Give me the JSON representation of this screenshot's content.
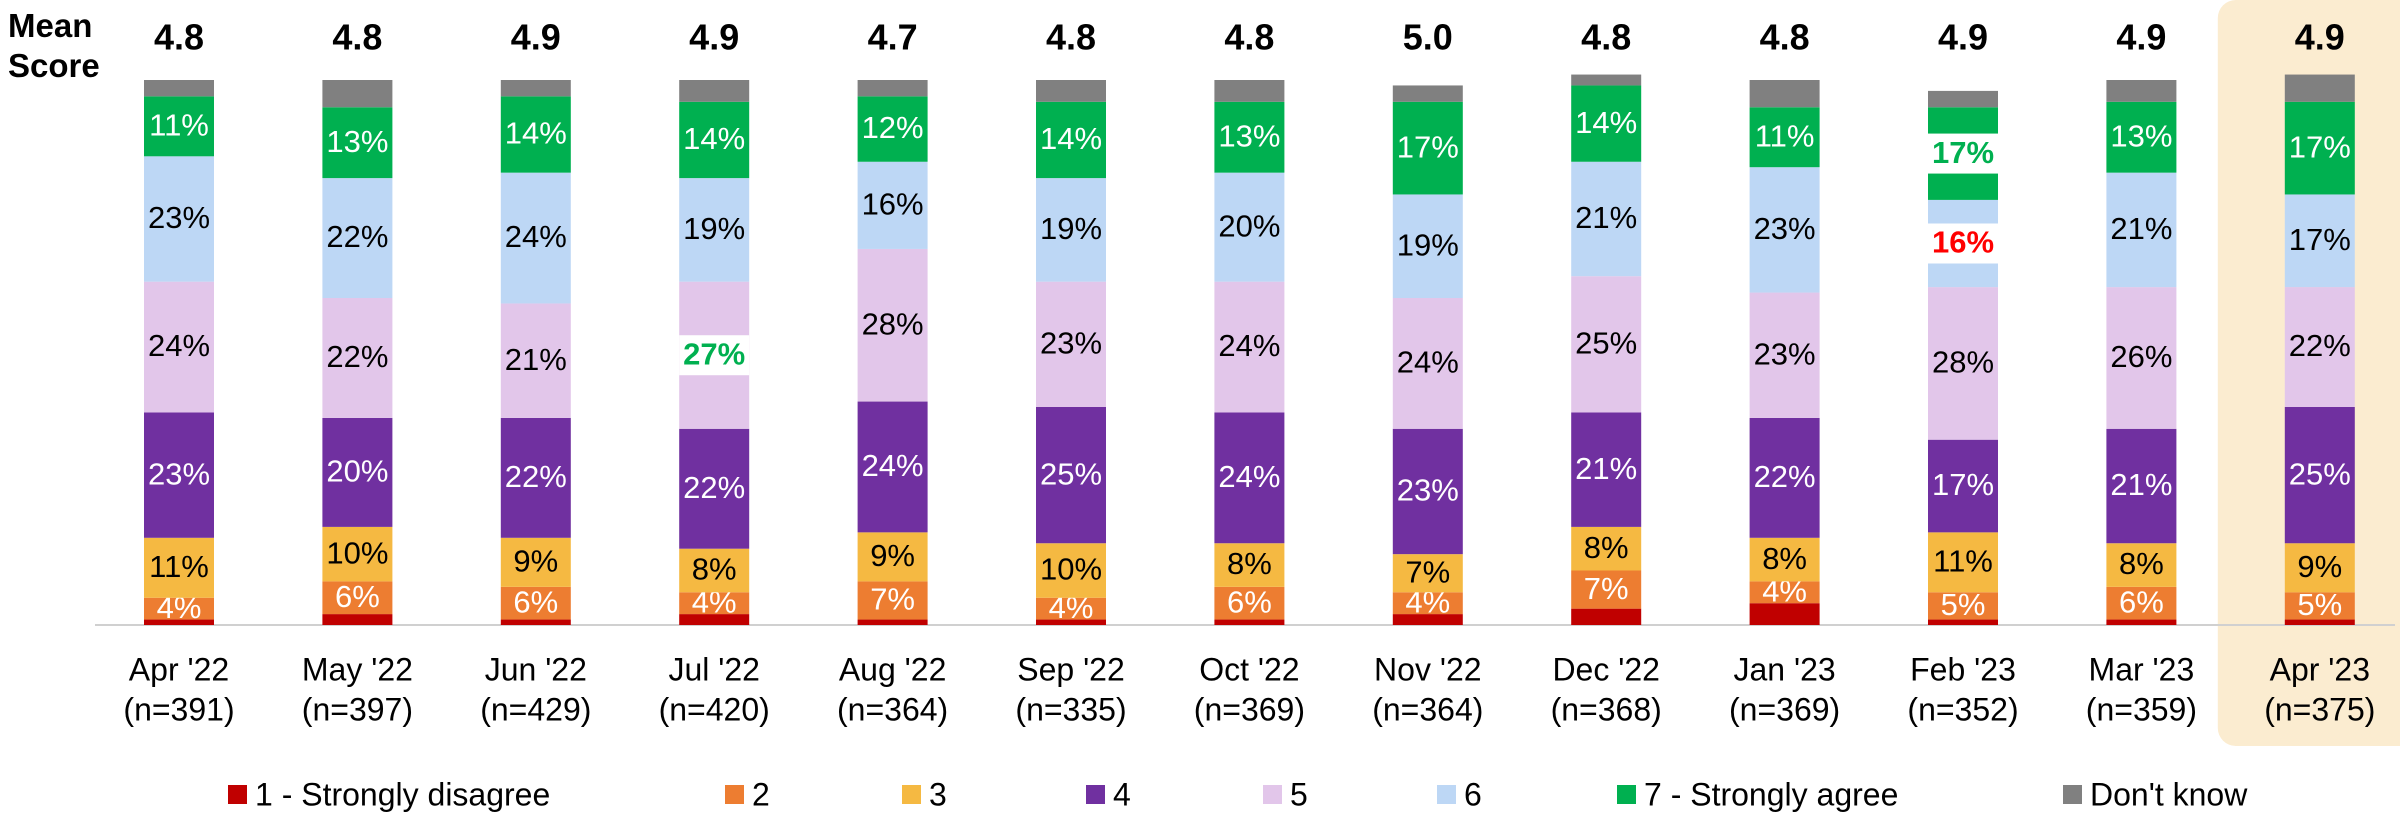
{
  "chart_data": {
    "type": "stacked_bar",
    "mean_title": "Mean Score",
    "categories": [
      "Apr '22",
      "May '22",
      "Jun '22",
      "Jul '22",
      "Aug '22",
      "Sep '22",
      "Oct '22",
      "Nov '22",
      "Dec '22",
      "Jan '23",
      "Feb '23",
      "Mar '23",
      "Apr '23"
    ],
    "n_labels": [
      "(n=391)",
      "(n=397)",
      "(n=429)",
      "(n=420)",
      "(n=364)",
      "(n=335)",
      "(n=369)",
      "(n=364)",
      "(n=368)",
      "(n=369)",
      "(n=352)",
      "(n=359)",
      "(n=375)"
    ],
    "mean_scores": [
      4.8,
      4.8,
      4.9,
      4.9,
      4.7,
      4.8,
      4.8,
      5.0,
      4.8,
      4.8,
      4.9,
      4.9,
      4.9
    ],
    "mean_score_labels": [
      "4.8",
      "4.8",
      "4.9",
      "4.9",
      "4.7",
      "4.8",
      "4.8",
      "5.0",
      "4.8",
      "4.8",
      "4.9",
      "4.9",
      "4.9"
    ],
    "ylim": [
      0,
      100
    ],
    "highlight_category": "Apr '23",
    "highlight_color": "#fbecd0",
    "series": [
      {
        "name": "1 - Strongly disagree",
        "color": "#c00000",
        "values": [
          1,
          2,
          1,
          2,
          1,
          1,
          1,
          2,
          3,
          4,
          1,
          1,
          1
        ]
      },
      {
        "name": "2",
        "color": "#ed7d31",
        "label_color": "#ffffff",
        "values": [
          4,
          6,
          6,
          4,
          7,
          4,
          6,
          4,
          7,
          4,
          5,
          6,
          5
        ],
        "value_labels": [
          "4%",
          "6%",
          "6%",
          "4%",
          "7%",
          "4%",
          "6%",
          "4%",
          "7%",
          "4%",
          "5%",
          "6%",
          "5%"
        ]
      },
      {
        "name": "3",
        "color": "#f5b942",
        "label_color": "#000000",
        "values": [
          11,
          10,
          9,
          8,
          9,
          10,
          8,
          7,
          8,
          8,
          11,
          8,
          9
        ],
        "value_labels": [
          "11%",
          "10%",
          "9%",
          "8%",
          "9%",
          "10%",
          "8%",
          "7%",
          "8%",
          "8%",
          "11%",
          "8%",
          "9%"
        ]
      },
      {
        "name": "4",
        "color": "#7030a0",
        "label_color": "#ffffff",
        "values": [
          23,
          20,
          22,
          22,
          24,
          25,
          24,
          23,
          21,
          22,
          17,
          21,
          25
        ],
        "value_labels": [
          "23%",
          "20%",
          "22%",
          "22%",
          "24%",
          "25%",
          "24%",
          "23%",
          "21%",
          "22%",
          "17%",
          "21%",
          "25%"
        ]
      },
      {
        "name": "5",
        "color": "#e2c6ea",
        "label_color": "#000000",
        "values": [
          24,
          22,
          21,
          27,
          28,
          23,
          24,
          24,
          25,
          23,
          28,
          26,
          22
        ],
        "value_labels": [
          "24%",
          "22%",
          "21%",
          "27%",
          "28%",
          "23%",
          "24%",
          "24%",
          "25%",
          "23%",
          "28%",
          "26%",
          "22%"
        ]
      },
      {
        "name": "6",
        "color": "#bdd7f5",
        "label_color": "#000000",
        "values": [
          23,
          22,
          24,
          19,
          16,
          19,
          20,
          19,
          21,
          23,
          16,
          21,
          17
        ],
        "value_labels": [
          "23%",
          "22%",
          "24%",
          "19%",
          "16%",
          "19%",
          "20%",
          "19%",
          "21%",
          "23%",
          "16%",
          "21%",
          "17%"
        ]
      },
      {
        "name": "7 - Strongly agree",
        "color": "#00b050",
        "label_color": "#ffffff",
        "values": [
          11,
          13,
          14,
          14,
          12,
          14,
          13,
          17,
          14,
          11,
          17,
          13,
          17
        ],
        "value_labels": [
          "11%",
          "13%",
          "14%",
          "14%",
          "12%",
          "14%",
          "13%",
          "17%",
          "14%",
          "11%",
          "17%",
          "13%",
          "17%"
        ]
      },
      {
        "name": "Don't know",
        "color": "#808080",
        "values": [
          3,
          5,
          3,
          4,
          3,
          4,
          4,
          3,
          2,
          5,
          3,
          4,
          5
        ]
      }
    ],
    "significant": [
      {
        "series": "5",
        "category": "Jul '22",
        "color": "#00b050"
      },
      {
        "series": "7 - Strongly agree",
        "category": "Feb '23",
        "color": "#00b050"
      },
      {
        "series": "6",
        "category": "Feb '23",
        "color": "#ff0000"
      }
    ]
  }
}
